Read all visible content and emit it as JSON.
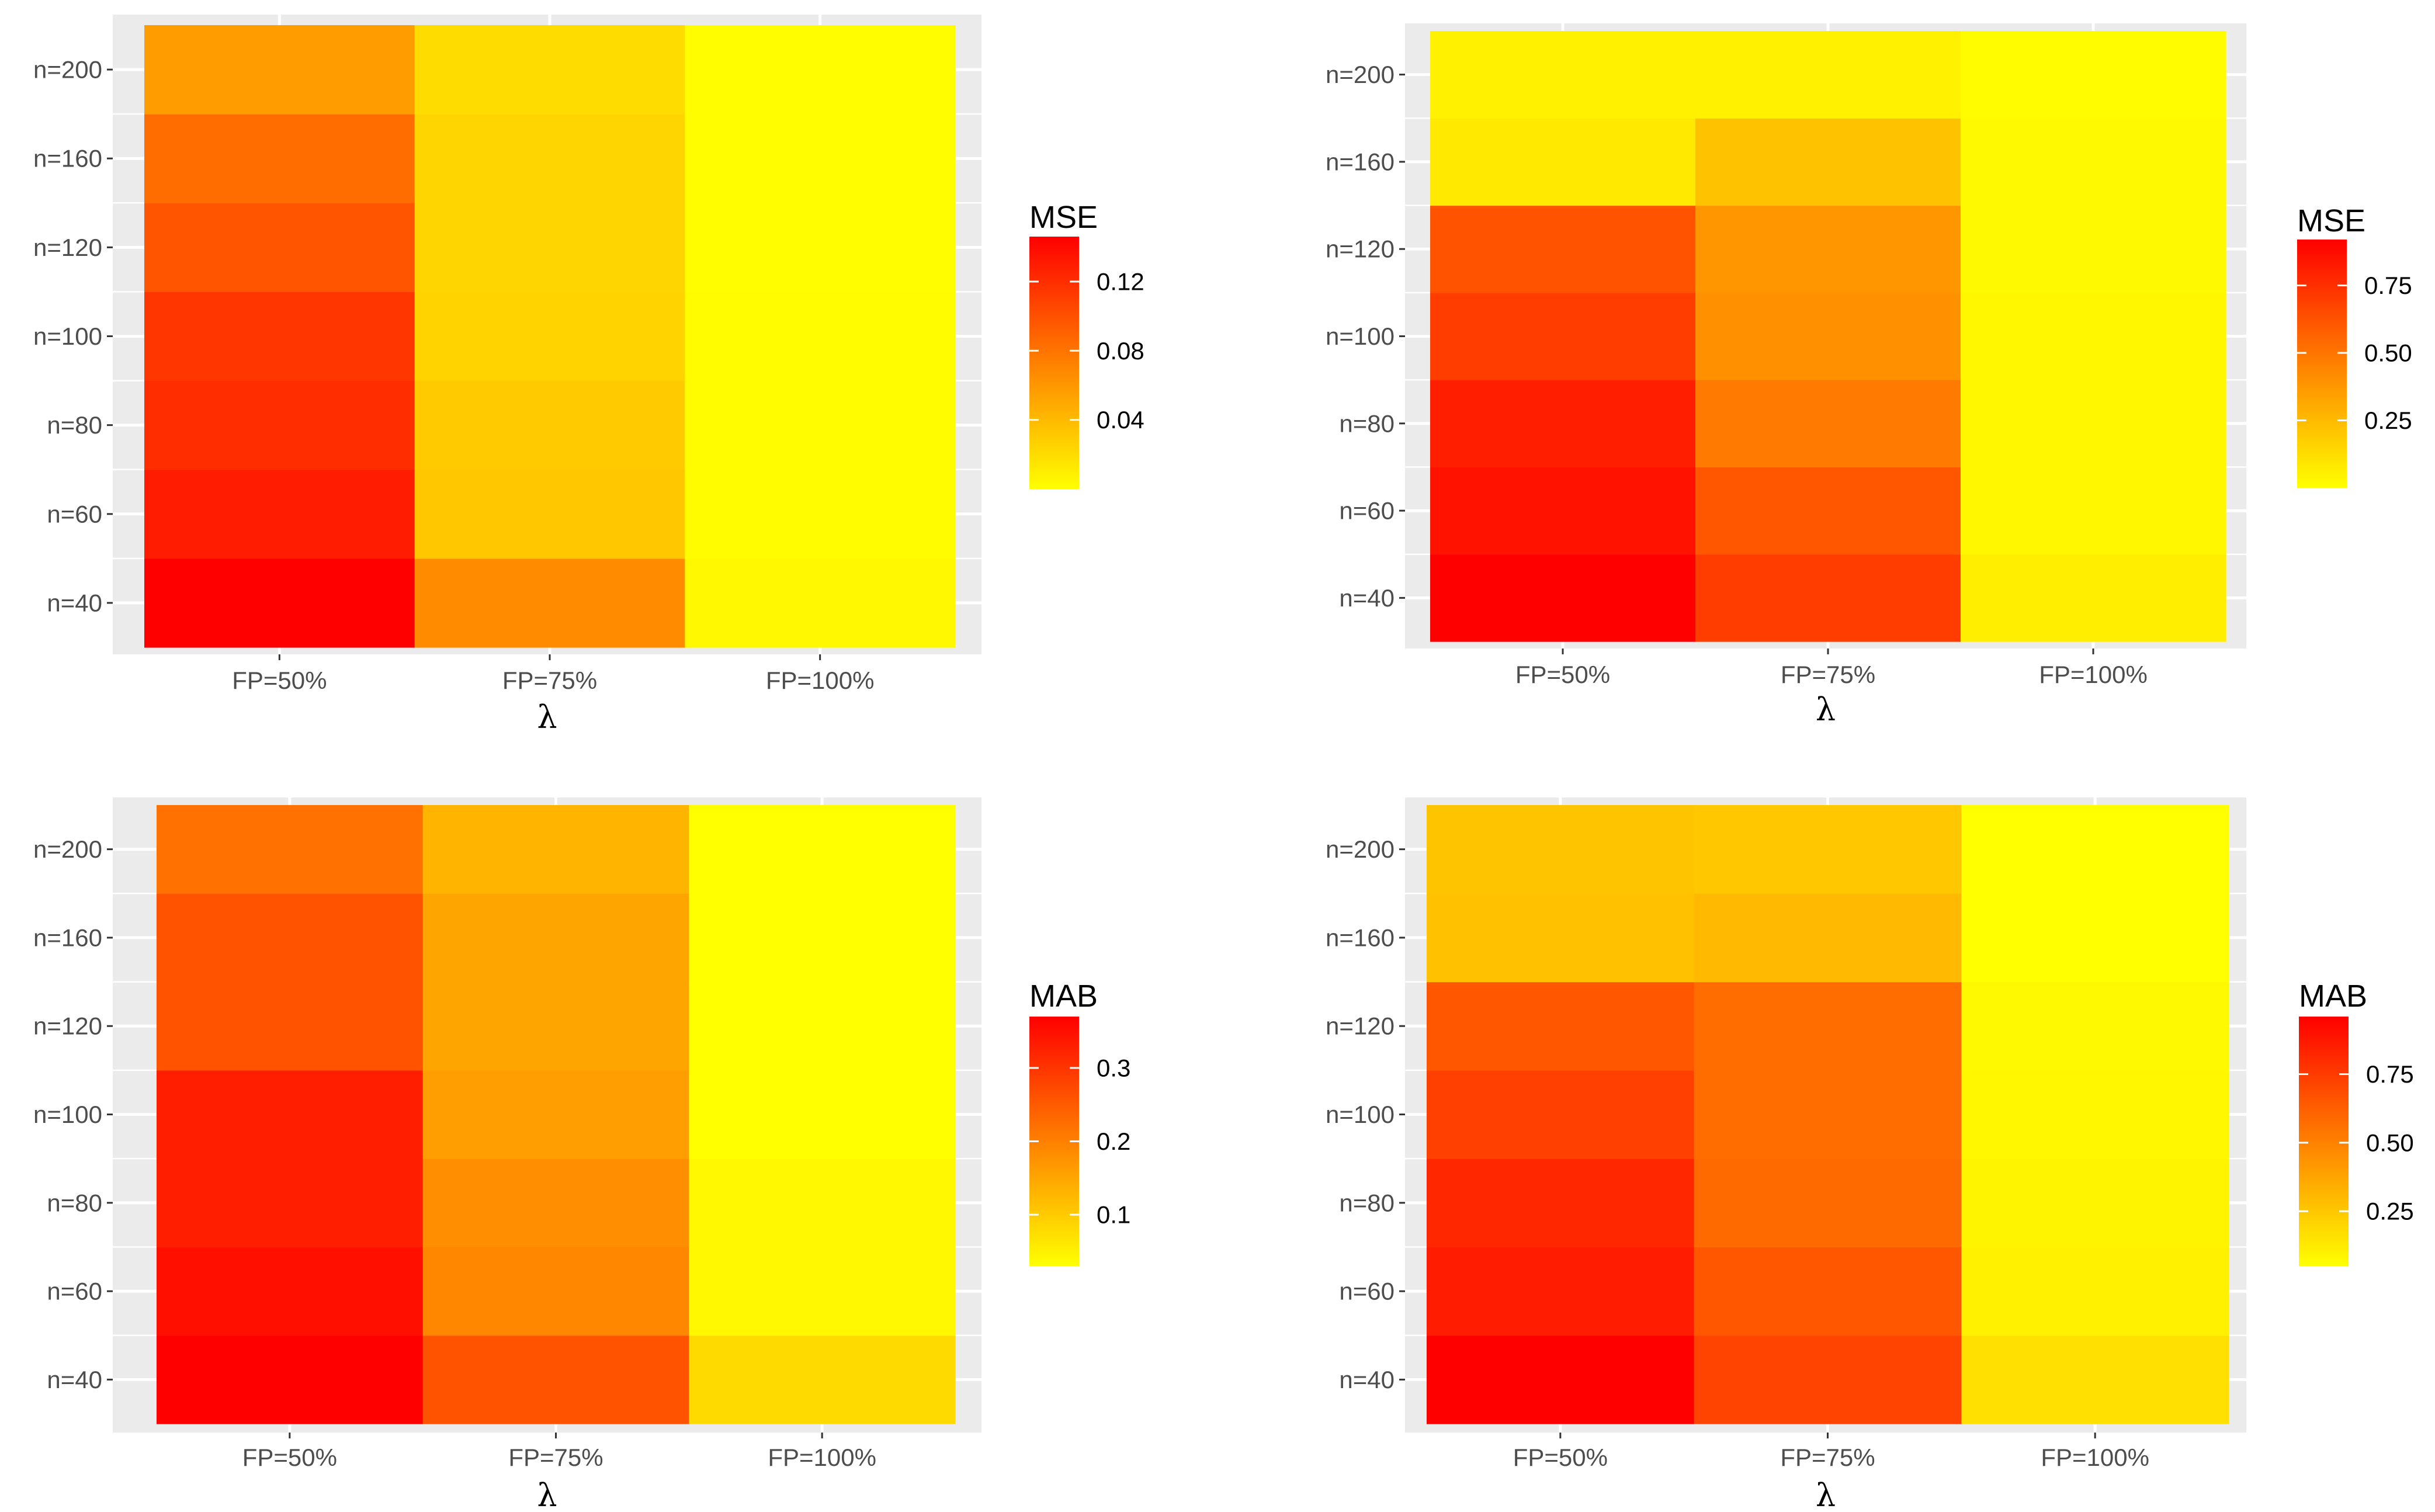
{
  "colors": {
    "panel_background": "#ebebeb",
    "grid_line": "#ffffff",
    "tick_text": "#4d4d4d",
    "scale_low": "#ffff00",
    "scale_high": "#ff0000"
  },
  "chart_data": [
    {
      "type": "heatmap",
      "xlabel": "λ",
      "x_categories": [
        "FP=50%",
        "FP=75%",
        "FP=100%"
      ],
      "y_categories": [
        "n=40",
        "n=60",
        "n=80",
        "n=100",
        "n=120",
        "n=160",
        "n=200"
      ],
      "legend": {
        "title": "MSE",
        "min": 0.0,
        "max": 0.146,
        "breaks": [
          0.04,
          0.08,
          0.12
        ],
        "break_labels": [
          "0.04",
          "0.08",
          "0.12"
        ]
      },
      "values": [
        [
          0.146,
          0.066,
          0.004
        ],
        [
          0.13,
          0.032,
          0.002
        ],
        [
          0.12,
          0.03,
          0.002
        ],
        [
          0.115,
          0.025,
          0.002
        ],
        [
          0.098,
          0.024,
          0.001
        ],
        [
          0.084,
          0.024,
          0.001
        ],
        [
          0.056,
          0.02,
          0.001
        ]
      ]
    },
    {
      "type": "heatmap",
      "xlabel": "λ",
      "x_categories": [
        "FP=50%",
        "FP=75%",
        "FP=100%"
      ],
      "y_categories": [
        "n=40",
        "n=60",
        "n=80",
        "n=100",
        "n=120",
        "n=160",
        "n=200"
      ],
      "legend": {
        "title": "MSE",
        "min": 0.0,
        "max": 0.92,
        "breaks": [
          0.25,
          0.5,
          0.75
        ],
        "break_labels": [
          "0.25",
          "0.50",
          "0.75"
        ]
      },
      "values": [
        [
          0.92,
          0.7,
          0.06
        ],
        [
          0.85,
          0.61,
          0.03
        ],
        [
          0.81,
          0.48,
          0.03
        ],
        [
          0.7,
          0.4,
          0.03
        ],
        [
          0.62,
          0.38,
          0.02
        ],
        [
          0.08,
          0.22,
          0.02
        ],
        [
          0.05,
          0.05,
          0.01
        ]
      ]
    },
    {
      "type": "heatmap",
      "xlabel": "λ",
      "x_categories": [
        "FP=50%",
        "FP=75%",
        "FP=100%"
      ],
      "y_categories": [
        "n=40",
        "n=60",
        "n=80",
        "n=100",
        "n=120",
        "n=160",
        "n=200"
      ],
      "legend": {
        "title": "MAB",
        "min": 0.03,
        "max": 0.37,
        "breaks": [
          0.1,
          0.2,
          0.3
        ],
        "break_labels": [
          "0.1",
          "0.2",
          "0.3"
        ]
      },
      "values": [
        [
          0.37,
          0.26,
          0.08
        ],
        [
          0.35,
          0.19,
          0.04
        ],
        [
          0.33,
          0.18,
          0.04
        ],
        [
          0.33,
          0.16,
          0.03
        ],
        [
          0.26,
          0.15,
          0.03
        ],
        [
          0.26,
          0.15,
          0.03
        ],
        [
          0.22,
          0.13,
          0.03
        ]
      ]
    },
    {
      "type": "heatmap",
      "xlabel": "λ",
      "x_categories": [
        "FP=50%",
        "FP=75%",
        "FP=100%"
      ],
      "y_categories": [
        "n=40",
        "n=60",
        "n=80",
        "n=100",
        "n=120",
        "n=160",
        "n=200"
      ],
      "legend": {
        "title": "MAB",
        "min": 0.05,
        "max": 0.96,
        "breaks": [
          0.25,
          0.5,
          0.75
        ],
        "break_labels": [
          "0.25",
          "0.50",
          "0.75"
        ]
      },
      "values": [
        [
          0.96,
          0.72,
          0.16
        ],
        [
          0.86,
          0.65,
          0.1
        ],
        [
          0.82,
          0.58,
          0.09
        ],
        [
          0.73,
          0.57,
          0.08
        ],
        [
          0.65,
          0.57,
          0.07
        ],
        [
          0.27,
          0.3,
          0.05
        ],
        [
          0.26,
          0.25,
          0.05
        ]
      ]
    }
  ]
}
